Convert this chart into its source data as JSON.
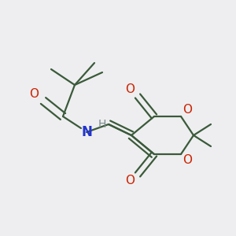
{
  "bg_color": "#eeeef0",
  "bond_color": "#3a5a3a",
  "o_color": "#cc2200",
  "n_color": "#2233cc",
  "h_color": "#7a8a8a",
  "lw": 1.6,
  "dbo": 0.012,
  "figsize": [
    3.0,
    3.0
  ],
  "dpi": 100,
  "xlim": [
    0,
    300
  ],
  "ylim": [
    0,
    300
  ]
}
